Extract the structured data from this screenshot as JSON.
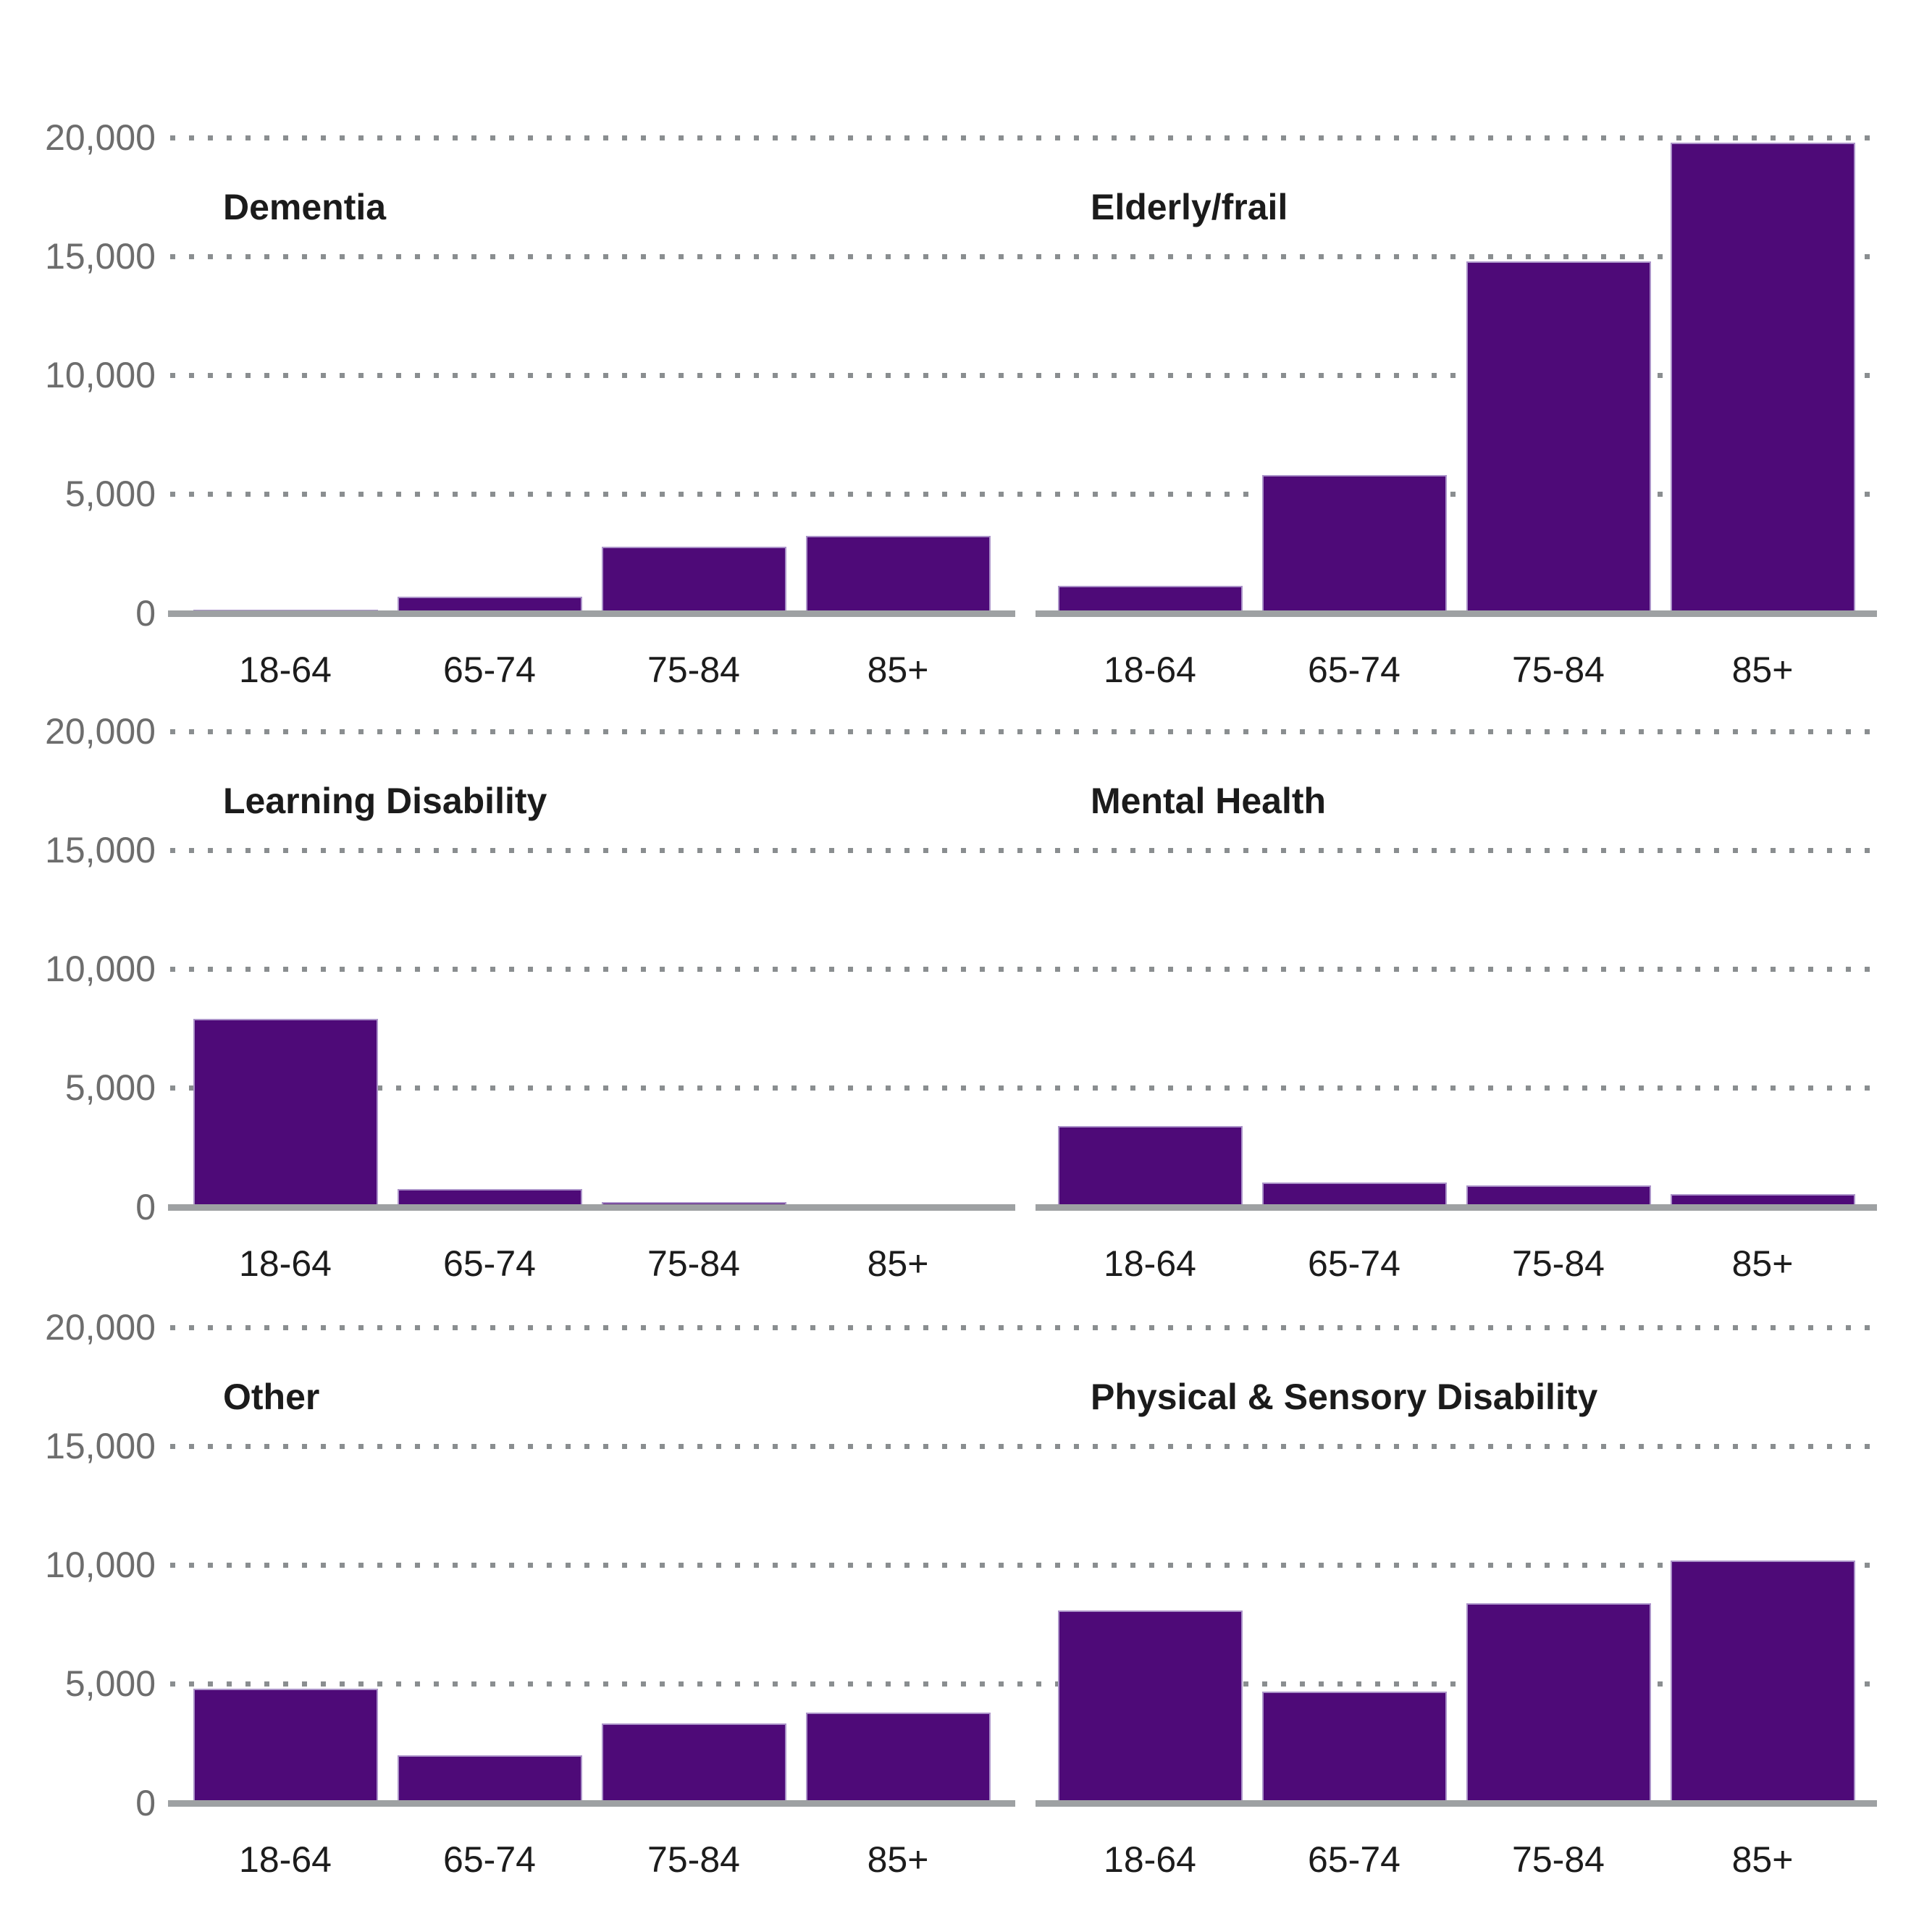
{
  "chart_data": {
    "type": "bar",
    "layout": "small-multiples 3 rows x 2 columns, shared y-axis per row",
    "categories": [
      "18-64",
      "65-74",
      "75-84",
      "85+"
    ],
    "ylim": [
      0,
      20000
    ],
    "yticks": [
      "20,000",
      "15,000",
      "10,000",
      "5,000"
    ],
    "zero_label": "0",
    "grid": "horizontal dotted gridlines at 5,000 intervals, on",
    "legend": "none",
    "bar_color": "#4e0a78",
    "bar_edge_color": "#ab93c9",
    "baseline_color": "#9ea1a3",
    "gridline_color": "#8a8e90",
    "title_color": "#1b1b1b",
    "ytick_color": "#6d6d6d",
    "xtick_color": "#1c1c1c",
    "panels": [
      {
        "title": "Dementia",
        "values": [
          150,
          700,
          2800,
          3250
        ]
      },
      {
        "title": "Elderly/frail",
        "values": [
          1150,
          5800,
          14800,
          19800
        ]
      },
      {
        "title": "Learning Disability",
        "values": [
          7900,
          750,
          220,
          80
        ]
      },
      {
        "title": "Mental Health",
        "values": [
          3400,
          1050,
          900,
          550
        ]
      },
      {
        "title": "Other",
        "values": [
          4800,
          2000,
          3350,
          3800
        ]
      },
      {
        "title": "Physical & Sensory Disability",
        "values": [
          8100,
          4700,
          8400,
          10200
        ]
      }
    ]
  }
}
